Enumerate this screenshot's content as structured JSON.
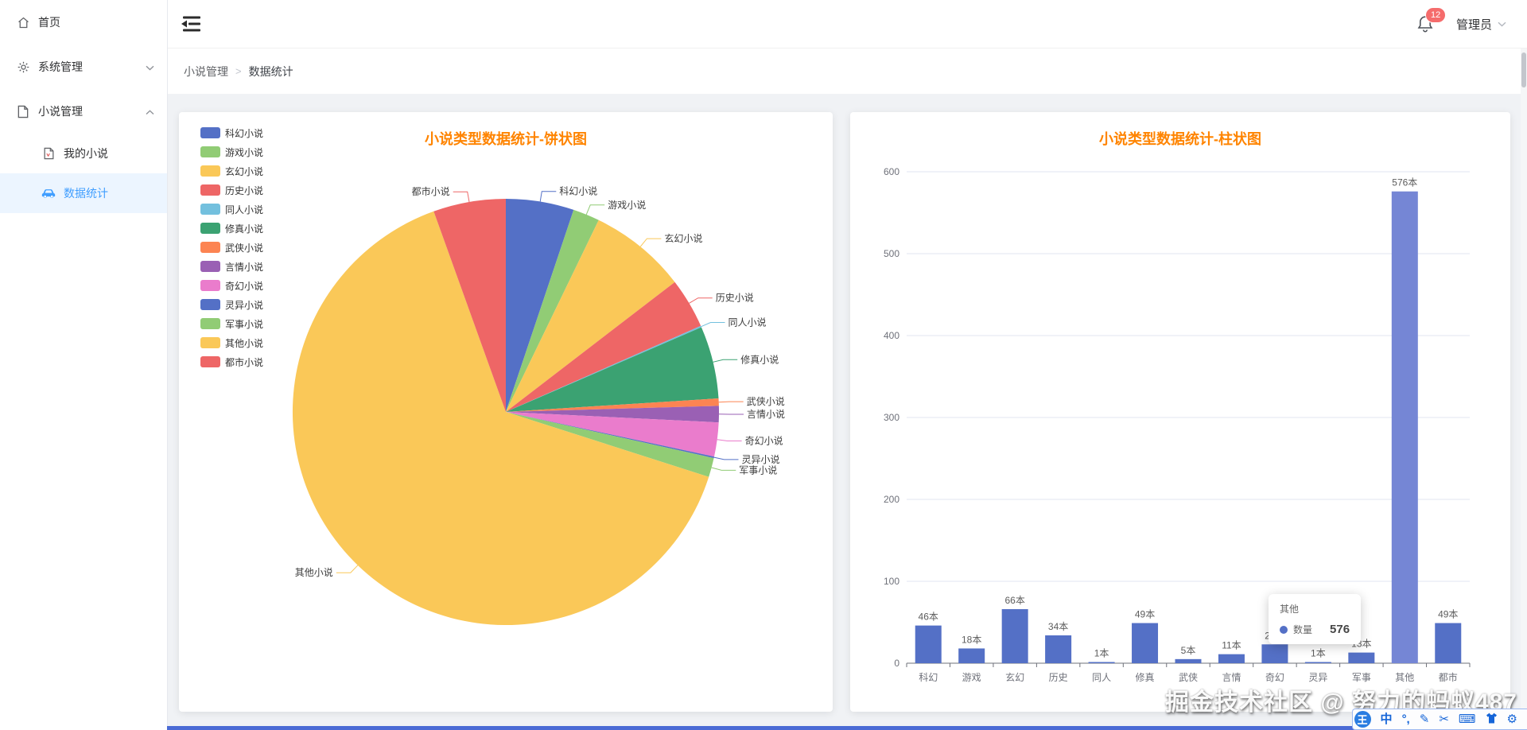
{
  "header": {
    "notification_count": "12",
    "user_label": "管理员"
  },
  "sidebar": {
    "items": [
      {
        "label": "首页",
        "icon": "home"
      },
      {
        "label": "系统管理",
        "icon": "gear",
        "expanded": false
      },
      {
        "label": "小说管理",
        "icon": "document",
        "expanded": true,
        "children": [
          {
            "label": "我的小说",
            "icon": "file"
          },
          {
            "label": "数据统计",
            "icon": "car",
            "active": true
          }
        ]
      }
    ]
  },
  "breadcrumb": {
    "section": "小说管理",
    "separator": ">",
    "page": "数据统计"
  },
  "watermark": {
    "text": "掘金技术社区 @ 努力的蚂蚁487"
  },
  "ime_toolbar": {
    "logo_char": "王",
    "lang_mode": "中",
    "punctuation_mode": "°,"
  },
  "chart_data": [
    {
      "type": "pie",
      "title": "小说类型数据统计-饼状图",
      "title_color": "#ff8400",
      "series_name": "数量",
      "labels": [
        "科幻小说",
        "游戏小说",
        "玄幻小说",
        "历史小说",
        "同人小说",
        "修真小说",
        "武侠小说",
        "言情小说",
        "奇幻小说",
        "灵异小说",
        "军事小说",
        "其他小说",
        "都市小说"
      ],
      "values": [
        46,
        18,
        66,
        34,
        1,
        49,
        5,
        11,
        23,
        1,
        13,
        576,
        49
      ],
      "palette": [
        "#5470c6",
        "#91cc75",
        "#fac858",
        "#ee6666",
        "#73c0de",
        "#3ba272",
        "#fc8452",
        "#9a60b4",
        "#ea7ccc"
      ],
      "start_angle_deg": 0,
      "clockwise": true,
      "legend_position": "top-left-vertical",
      "label_text_color": "#3c3c3c"
    },
    {
      "type": "bar",
      "title": "小说类型数据统计-柱状图",
      "title_color": "#ff8400",
      "series_name": "数量",
      "categories": [
        "科幻",
        "游戏",
        "玄幻",
        "历史",
        "同人",
        "修真",
        "武侠",
        "言情",
        "奇幻",
        "灵异",
        "军事",
        "其他",
        "都市"
      ],
      "values": [
        46,
        18,
        66,
        34,
        1,
        49,
        5,
        11,
        23,
        1,
        13,
        576,
        49
      ],
      "value_label_unit": "本",
      "ylim": [
        0,
        600
      ],
      "ytick_step": 100,
      "grid": true,
      "grid_color": "#E0E6F1",
      "axis_color": "#6E7079",
      "bar_color": "#5470c6",
      "highlight_index": 11,
      "highlight_color": "#7586d5",
      "tooltip": {
        "title": "其他",
        "series": "数量",
        "value": "576",
        "dot_color": "#5470c6"
      }
    }
  ]
}
